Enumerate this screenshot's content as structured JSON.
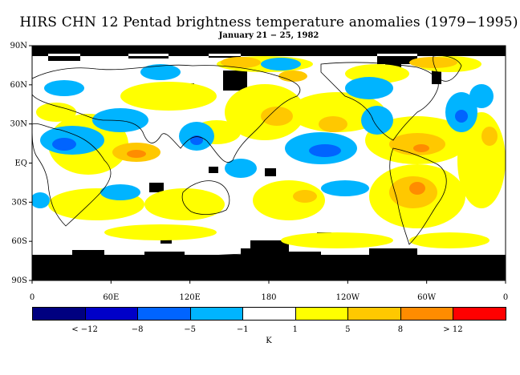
{
  "title": "HIRS CHN 12 Pentad brightness temperature anomalies (1979−1995)",
  "subtitle": "January 21 − 25, 1982",
  "lat_labels": [
    "90N",
    "60N",
    "30N",
    "EQ",
    "30S",
    "60S",
    "90S"
  ],
  "lon_labels": [
    "0",
    "60E",
    "120E",
    "180",
    "120W",
    "60W",
    "0"
  ],
  "colorbar": {
    "colors": [
      "#000080",
      "#0000c8",
      "#0064ff",
      "#00b4ff",
      "#ffffff",
      "#ffff00",
      "#ffc800",
      "#ff8c00",
      "#ff0000"
    ],
    "labels": [
      "< −12",
      "−8",
      "−5",
      "−1",
      "1",
      "5",
      "8",
      "> 12"
    ],
    "unit": "K"
  },
  "map_colors": {
    "ocean": "#ffffff",
    "missing": "#000000",
    "cool": "#00b4ff",
    "cooler": "#0064ff",
    "warm": "#ffff00",
    "warmer": "#ffc800",
    "hot": "#ff8c00"
  }
}
